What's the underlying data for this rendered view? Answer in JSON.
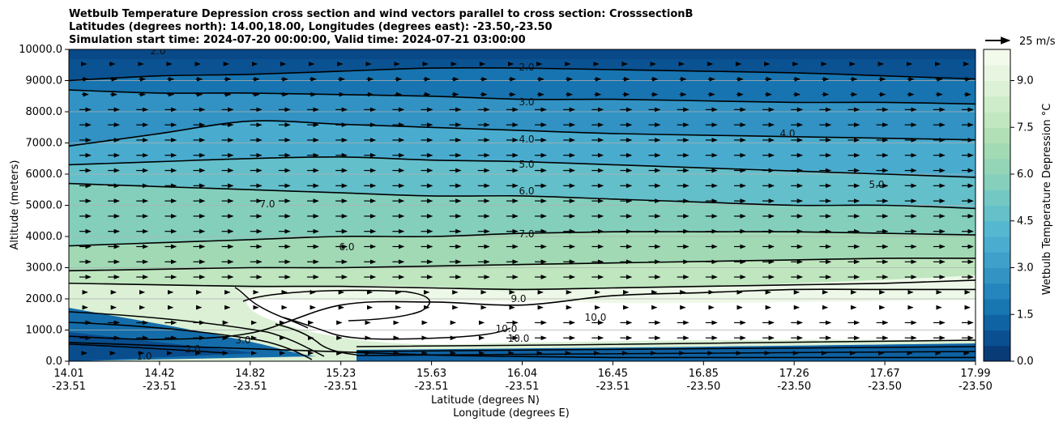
{
  "chart_data": {
    "type": "contour",
    "title_lines": [
      "Wetbulb Temperature Depression cross section and wind vectors parallel to cross section: CrosssectionB",
      "Latitudes (degrees north): 14.00,18.00, Longitudes (degrees east): -23.50,-23.50",
      "Simulation start time: 2024-07-20 00:00:00, Valid time: 2024-07-21 03:00:00"
    ],
    "ylabel": "Altitude (meters)",
    "xlabel_lat": "Latitude (degrees N)",
    "xlabel_lon": "Longitude (degrees E)",
    "ylim": [
      0,
      10000
    ],
    "y_ticks": [
      "0.0",
      "1000.0",
      "2000.0",
      "3000.0",
      "4000.0",
      "5000.0",
      "6000.0",
      "7000.0",
      "8000.0",
      "9000.0",
      "10000.0"
    ],
    "x_ticks": [
      {
        "lat": "14.01",
        "lon": "-23.51"
      },
      {
        "lat": "14.42",
        "lon": "-23.51"
      },
      {
        "lat": "14.82",
        "lon": "-23.51"
      },
      {
        "lat": "15.23",
        "lon": "-23.51"
      },
      {
        "lat": "15.63",
        "lon": "-23.51"
      },
      {
        "lat": "16.04",
        "lon": "-23.51"
      },
      {
        "lat": "16.45",
        "lon": "-23.51"
      },
      {
        "lat": "16.85",
        "lon": "-23.50"
      },
      {
        "lat": "17.26",
        "lon": "-23.50"
      },
      {
        "lat": "17.67",
        "lon": "-23.50"
      },
      {
        "lat": "17.99",
        "lon": "-23.50"
      }
    ],
    "colorbar": {
      "label": "Wetbulb Temperature Depression °C",
      "range": [
        0,
        10
      ],
      "ticks": [
        "0.0",
        "1.5",
        "3.0",
        "4.5",
        "6.0",
        "7.5",
        "9.0"
      ]
    },
    "quiver_key": {
      "label": "25 m/s",
      "speed": 25
    },
    "contour_labels": [
      "2.0",
      "3.0",
      "4.0",
      "5.0",
      "6.0",
      "7.0",
      "9.0",
      "10.0",
      "10.0",
      "10.0",
      "7.0",
      "6.0",
      "4.0",
      "5.0",
      "1.0",
      "2.0",
      "3.0",
      "2.0"
    ],
    "levels": [
      {
        "value": 1.0,
        "top": [
          600,
          500,
          400,
          300,
          200,
          150,
          120,
          120,
          120,
          120,
          120
        ]
      },
      {
        "value": 2.0,
        "top": [
          9000,
          9150,
          9200,
          9300,
          9400,
          9400,
          9350,
          9300,
          9250,
          9150,
          9050
        ]
      },
      {
        "value": 3.0,
        "top": [
          8700,
          8600,
          8600,
          8550,
          8500,
          8400,
          8400,
          8350,
          8300,
          8300,
          8250
        ]
      },
      {
        "value": 4.0,
        "top": [
          6900,
          7300,
          7700,
          7600,
          7500,
          7400,
          7300,
          7250,
          7200,
          7150,
          7100
        ]
      },
      {
        "value": 5.0,
        "top": [
          6300,
          6400,
          6500,
          6550,
          6450,
          6400,
          6300,
          6200,
          6100,
          6000,
          5900
        ]
      },
      {
        "value": 6.0,
        "top": [
          5700,
          5600,
          5500,
          5400,
          5300,
          5300,
          5200,
          5100,
          5000,
          5000,
          4900
        ]
      },
      {
        "value": 7.0,
        "top": [
          3700,
          3800,
          3900,
          4000,
          4000,
          4100,
          4150,
          4150,
          4150,
          4100,
          4050
        ]
      },
      {
        "value": 8.0,
        "top": [
          2900,
          2950,
          3000,
          3000,
          3050,
          3100,
          3150,
          3200,
          3250,
          3300,
          3300
        ]
      },
      {
        "value": 9.0,
        "top": [
          2500,
          2450,
          2400,
          2400,
          2350,
          2300,
          2350,
          2400,
          2450,
          2500,
          2600
        ]
      },
      {
        "value": 10.0,
        "top": [
          800,
          700,
          900,
          1800,
          1900,
          1800,
          2100,
          2200,
          2300,
          2300,
          2300
        ]
      }
    ]
  }
}
